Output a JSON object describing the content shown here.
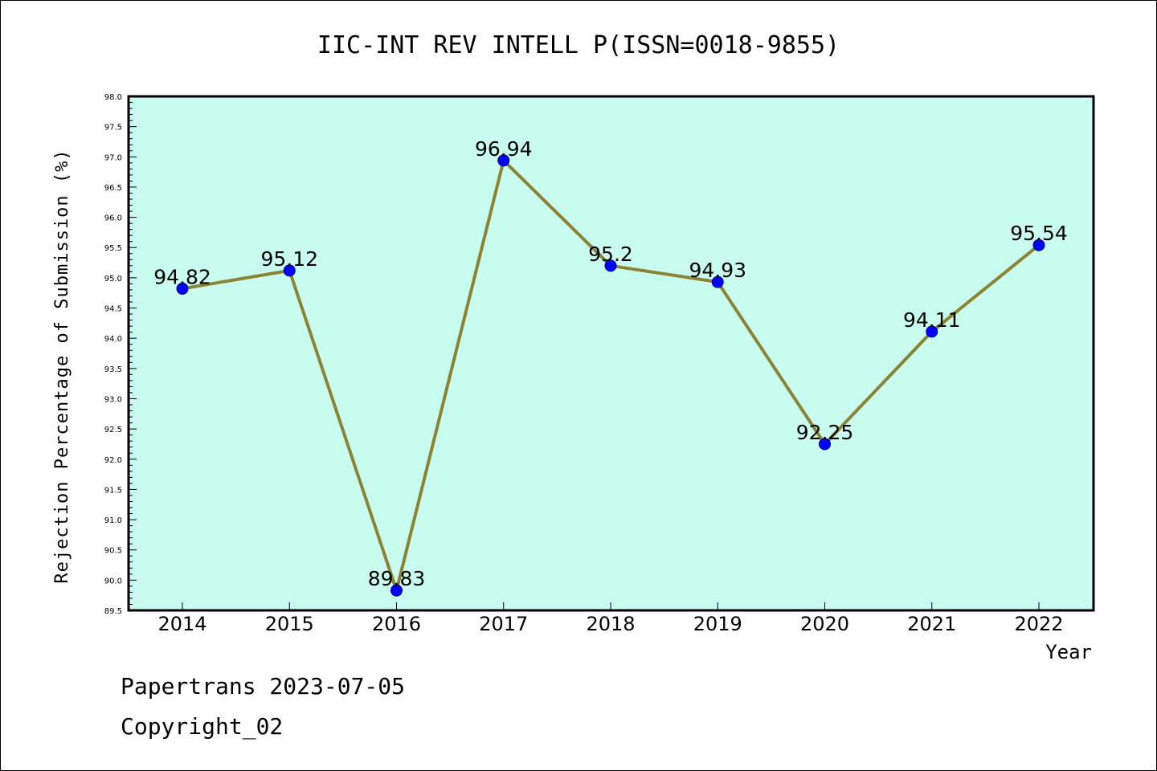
{
  "chart_data": {
    "type": "line",
    "title": "IIC-INT REV INTELL P(ISSN=0018-9855)",
    "xlabel": "Year",
    "ylabel": "Rejection Percentage of Submission (%)",
    "x": [
      "2014",
      "2015",
      "2016",
      "2017",
      "2018",
      "2019",
      "2020",
      "2021",
      "2022"
    ],
    "series": [
      {
        "values": [
          94.82,
          95.12,
          89.83,
          96.94,
          95.2,
          94.93,
          92.25,
          94.11,
          95.54
        ],
        "labels": [
          "94.82",
          "95.12",
          "89.83",
          "96.94",
          "95.2",
          "94.93",
          "92.25",
          "94.11",
          "95.54"
        ]
      }
    ],
    "ylim": [
      89.5,
      98.0
    ],
    "yticks": [
      "89.5",
      "90.0",
      "90.5",
      "91.0",
      "91.5",
      "92.0",
      "92.5",
      "93.0",
      "93.5",
      "94.0",
      "94.5",
      "95.0",
      "95.5",
      "96.0",
      "96.5",
      "97.0",
      "97.5",
      "98.0"
    ],
    "grid": false,
    "colors": {
      "plot_background": "#c8fcef",
      "line": "#8b8435",
      "marker": "#0000ff"
    }
  },
  "footer": {
    "line1": "Papertrans 2023-07-05",
    "line2": "Copyright_02"
  }
}
